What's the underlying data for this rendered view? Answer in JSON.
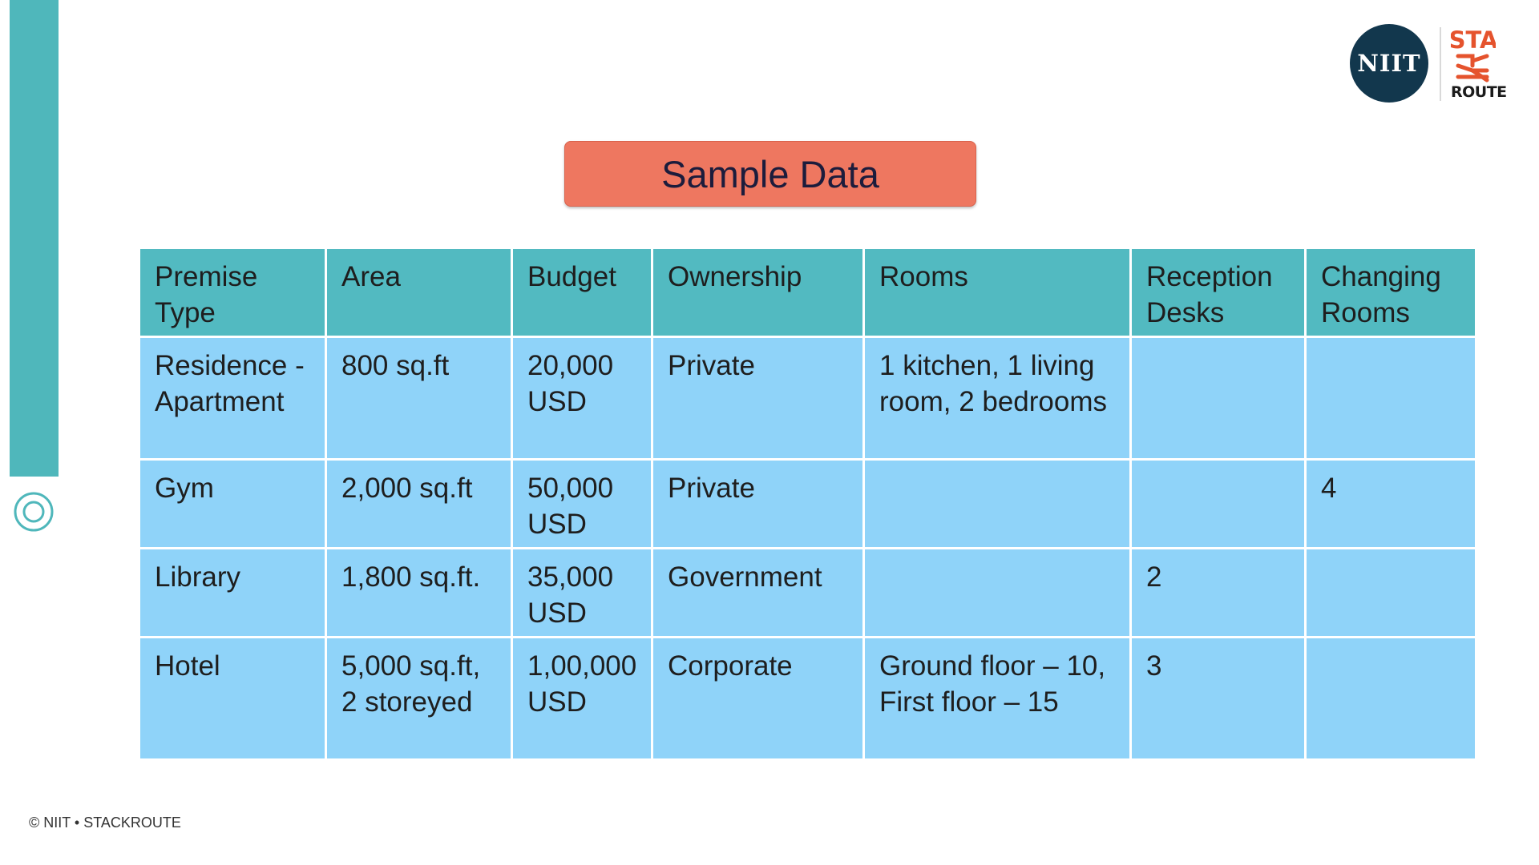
{
  "slide": {
    "title": "Sample Data",
    "footer": "© NIIT • STACKROUTE"
  },
  "logo": {
    "niit": "NIIT",
    "stackroute_top": "STA",
    "stackroute_bottom": "ROUTE",
    "accent_color": "#e5532d",
    "niit_color": "#12374d"
  },
  "table": {
    "headers": [
      "Premise Type",
      "Area",
      "Budget",
      "Ownership",
      "Rooms",
      "Reception Desks",
      "Changing Rooms"
    ],
    "rows": [
      [
        "Residence - Apartment",
        "800 sq.ft",
        "20,000 USD",
        "Private",
        "1 kitchen, 1 living room, 2 bedrooms",
        "",
        ""
      ],
      [
        "Gym",
        "2,000 sq.ft",
        "50,000 USD",
        "Private",
        "",
        "",
        "4"
      ],
      [
        "Library",
        "1,800 sq.ft.",
        "35,000 USD",
        "Government",
        "",
        "2",
        ""
      ],
      [
        "Hotel",
        "5,000 sq.ft, 2 storeyed",
        "1,00,000 USD",
        "Corporate",
        "Ground floor – 10,\nFirst floor – 15",
        "3",
        ""
      ]
    ]
  },
  "colors": {
    "accent_bar": "#4fb7bb",
    "header_cell": "#52bac1",
    "body_cell": "#8fd3f9",
    "title_box": "#ee7760"
  }
}
